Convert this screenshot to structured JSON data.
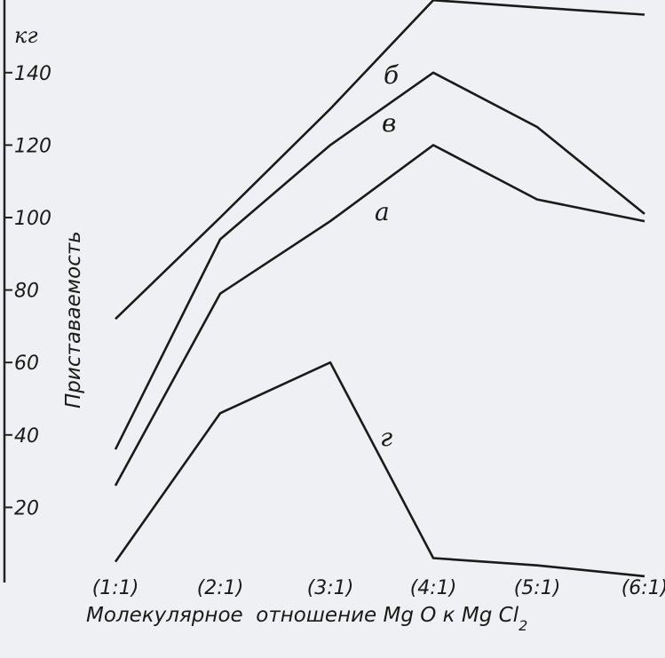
{
  "chart_data": {
    "type": "line",
    "title": "",
    "unit": "кг",
    "ylabel": "Приставаемость",
    "xlabel_parts": [
      "Молекулярное  отношение ",
      "Mg O",
      " к ",
      "Mg Cl",
      "2"
    ],
    "categories": [
      "(1:1)",
      "(2:1)",
      "(3:1)",
      "(4:1)",
      "(5:1)",
      "(6:1)"
    ],
    "yticks": [
      20,
      40,
      60,
      80,
      100,
      120,
      140
    ],
    "ylim": [
      0,
      160
    ],
    "grid": false,
    "series": [
      {
        "name": "б",
        "values": [
          72,
          100,
          130,
          160,
          158,
          156
        ]
      },
      {
        "name": "в",
        "values": [
          36,
          94,
          120,
          140,
          125,
          101
        ]
      },
      {
        "name": "а",
        "values": [
          26,
          79,
          99,
          120,
          105,
          99
        ]
      },
      {
        "name": "г",
        "values": [
          5,
          46,
          60,
          6,
          4,
          1
        ]
      }
    ]
  }
}
